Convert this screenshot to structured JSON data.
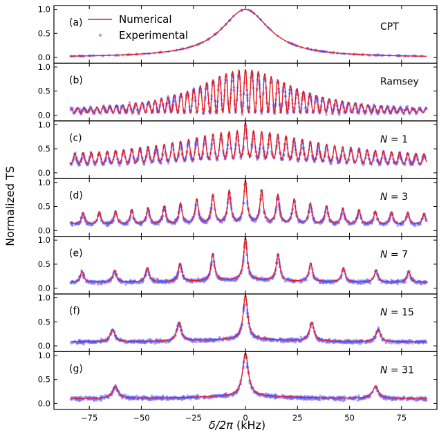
{
  "chart_data": {
    "type": "line",
    "ylabel": "Normalized TS",
    "xlabel_italic": "δ/2π",
    "xlabel_unit": " (kHz)",
    "xlim": [
      -92,
      92
    ],
    "ylim": [
      -0.12,
      1.08
    ],
    "x_ticks": [
      -75,
      -50,
      -25,
      0,
      25,
      50,
      75
    ],
    "x_tick_labels": [
      "−75",
      "−50",
      "−25",
      "0",
      "25",
      "50",
      "75"
    ],
    "y_ticks": [
      0.0,
      0.5,
      1.0
    ],
    "y_tick_labels": [
      "0.0",
      "0.5",
      "1.0"
    ],
    "legend": {
      "placement": "top-left of panel (a)",
      "entries": [
        {
          "label": "Numerical",
          "color": "#e41a1c",
          "kind": "line"
        },
        {
          "label": "Experimental",
          "color": "#6a6aff",
          "kind": "marker"
        }
      ]
    },
    "x_range": [
      -84,
      87
    ],
    "panels": [
      {
        "id": "a",
        "label": "(a)",
        "annotation": "CPT",
        "annotation_italic": false,
        "model": "lorentzian",
        "width_khz": 14,
        "baseline": 0.0
      },
      {
        "id": "b",
        "label": "(b)",
        "annotation": "Ramsey",
        "annotation_italic": false,
        "model": "ramsey",
        "fringe_period_khz": 3.1,
        "envelope_width_khz": 28,
        "baseline": 0.05
      },
      {
        "id": "c",
        "label": "(c)",
        "annotation": "N = 1",
        "annotation_italic": true,
        "N": 1,
        "model": "comb",
        "peak_spacing_khz": 3.9,
        "peak_width_khz": 0.9,
        "envelope_width_khz": 40,
        "baseline": 0.12
      },
      {
        "id": "d",
        "label": "(d)",
        "annotation": "N = 3",
        "annotation_italic": true,
        "N": 3,
        "model": "comb",
        "peak_spacing_khz": 7.8,
        "peak_width_khz": 0.9,
        "envelope_width_khz": 30,
        "baseline": 0.12
      },
      {
        "id": "e",
        "label": "(e)",
        "annotation": "N = 7",
        "annotation_italic": true,
        "N": 7,
        "model": "comb",
        "peak_spacing_khz": 15.7,
        "peak_width_khz": 1.0,
        "envelope_width_khz": 25,
        "baseline": 0.12
      },
      {
        "id": "f",
        "label": "(f)",
        "annotation": "N = 15",
        "annotation_italic": true,
        "N": 15,
        "model": "comb",
        "peak_spacing_khz": 31.9,
        "peak_width_khz": 1.3,
        "envelope_width_khz": 25,
        "baseline": 0.08
      },
      {
        "id": "g",
        "label": "(g)",
        "annotation": "N = 31",
        "annotation_italic": true,
        "N": 31,
        "model": "comb",
        "peak_spacing_khz": 62.5,
        "peak_width_khz": 1.6,
        "envelope_width_khz": 25,
        "baseline": 0.1
      }
    ]
  }
}
